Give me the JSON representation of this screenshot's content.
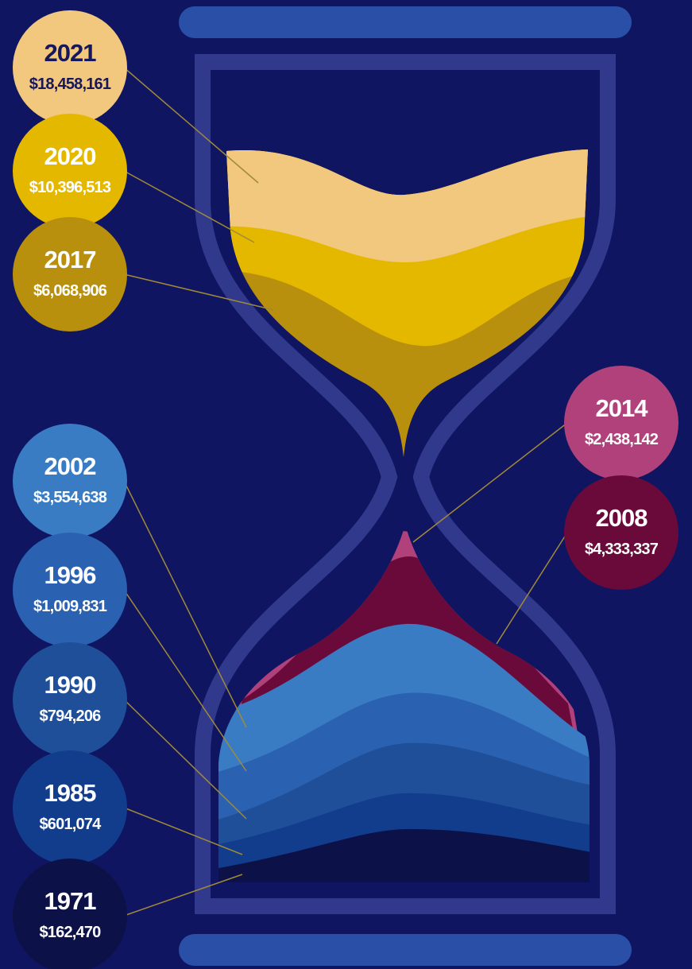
{
  "items": [
    {
      "year": "2021",
      "amount": "$18,458,161"
    },
    {
      "year": "2020",
      "amount": "$10,396,513"
    },
    {
      "year": "2017",
      "amount": "$6,068,906"
    },
    {
      "year": "2014",
      "amount": "$2,438,142"
    },
    {
      "year": "2008",
      "amount": "$4,333,337"
    },
    {
      "year": "2002",
      "amount": "$3,554,638"
    },
    {
      "year": "1996",
      "amount": "$1,009,831"
    },
    {
      "year": "1990",
      "amount": "$794,206"
    },
    {
      "year": "1985",
      "amount": "$601,074"
    },
    {
      "year": "1971",
      "amount": "$162,470"
    }
  ]
}
